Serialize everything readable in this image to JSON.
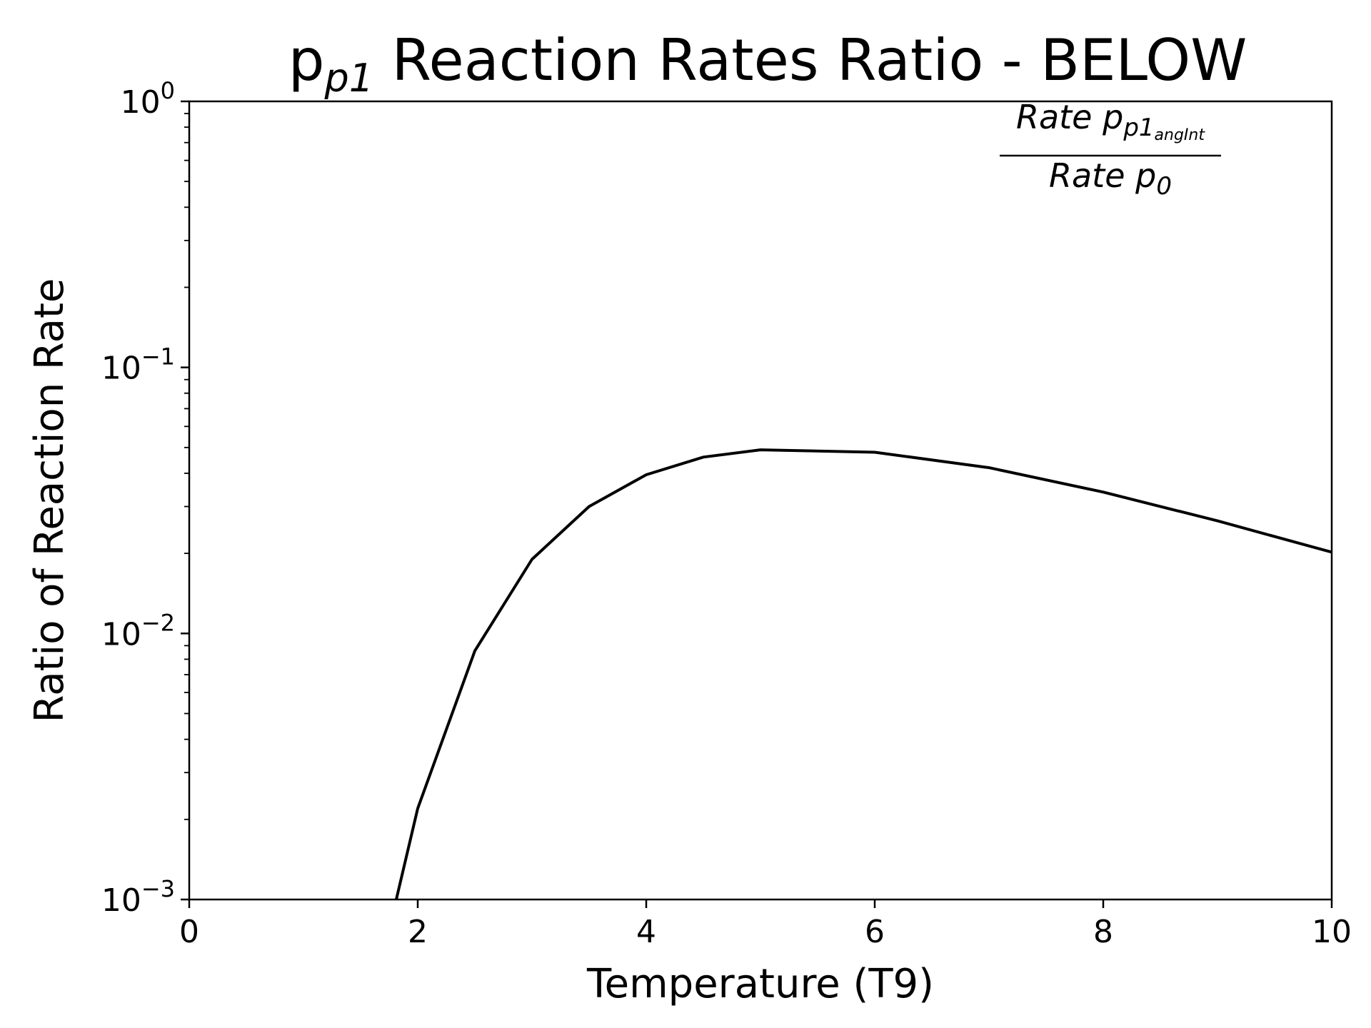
{
  "chart_data": {
    "type": "line",
    "title": {
      "main": "p",
      "sub": "p1",
      "rest": " Reaction Rates Ratio - BELOW"
    },
    "xlabel": "Temperature (T9)",
    "ylabel": "Ratio of Reaction Rate",
    "xlim": [
      0,
      10
    ],
    "ylim": [
      0.001,
      1
    ],
    "yscale": "log",
    "x_ticks": [
      "0",
      "2",
      "4",
      "6",
      "8",
      "10"
    ],
    "y_ticks": [
      {
        "base": "10",
        "exp": "0"
      },
      {
        "base": "10",
        "exp": "−1"
      },
      {
        "base": "10",
        "exp": "−2"
      },
      {
        "base": "10",
        "exp": "−3"
      }
    ],
    "grid": false,
    "annotation": {
      "position": "top-right",
      "numerator": {
        "text": "Rate p",
        "sub": "p1",
        "subsub": "angInt"
      },
      "denominator": {
        "text": "Rate p",
        "sub": "0"
      }
    },
    "series": [
      {
        "color": "#000000",
        "x": [
          1.8,
          2.0,
          2.5,
          3.0,
          3.5,
          4.0,
          4.5,
          5.0,
          6.0,
          7.0,
          8.0,
          9.0,
          10.0
        ],
        "y": [
          0.00095,
          0.0022,
          0.0086,
          0.019,
          0.03,
          0.0395,
          0.046,
          0.049,
          0.048,
          0.042,
          0.034,
          0.0265,
          0.0202
        ]
      }
    ]
  }
}
